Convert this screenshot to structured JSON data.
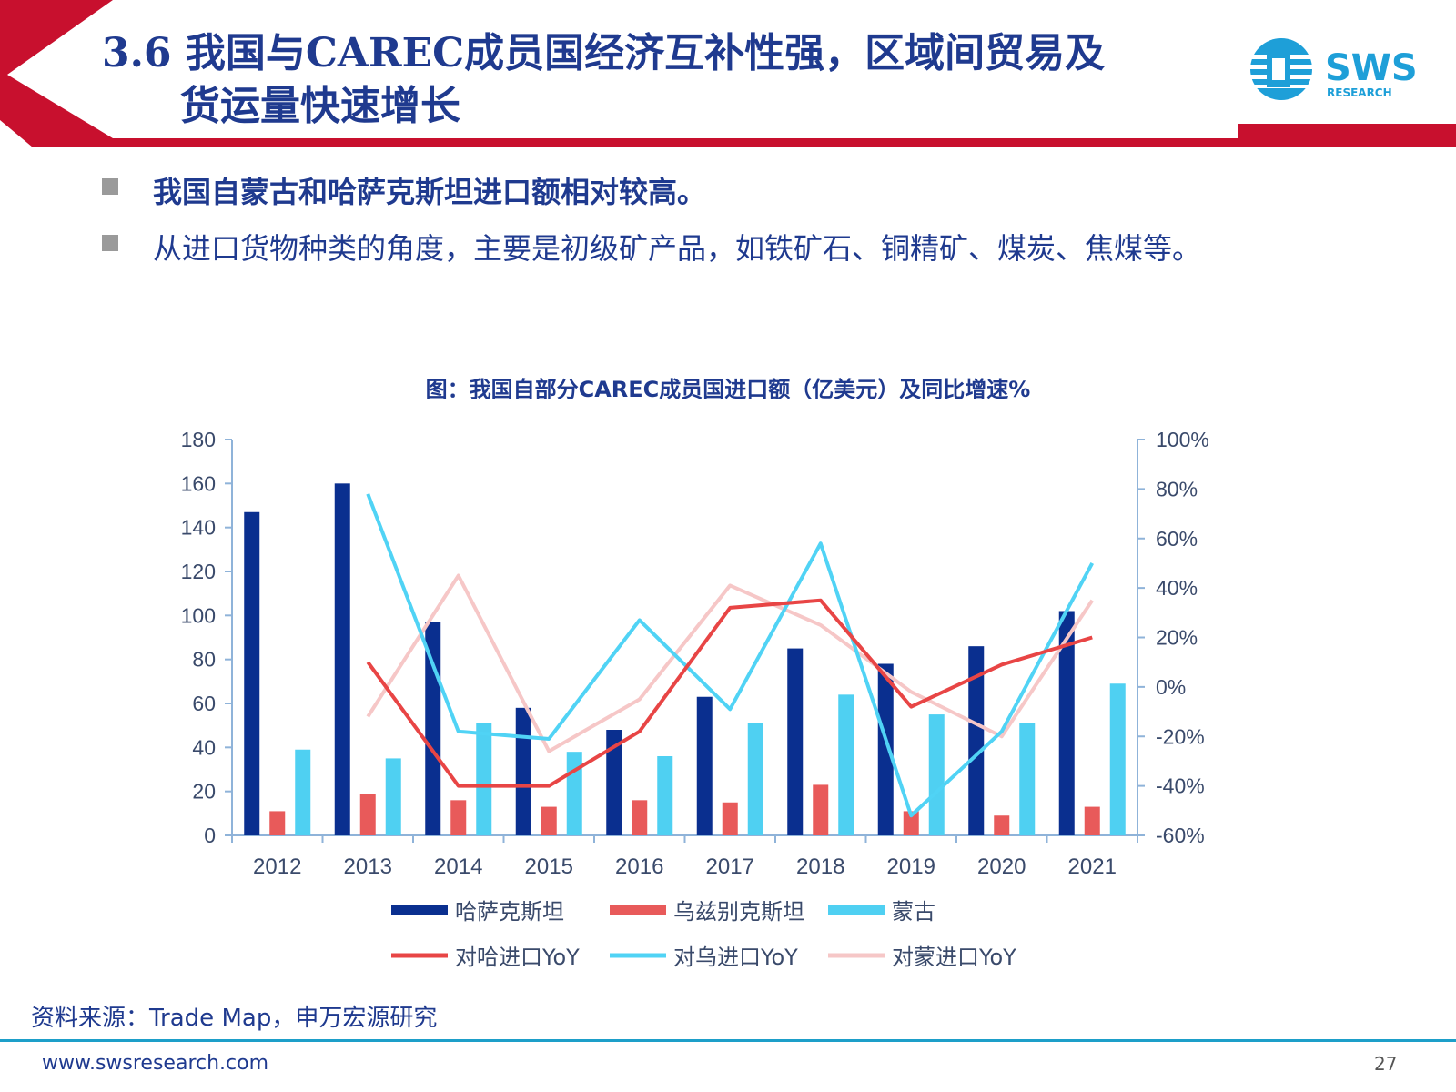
{
  "header": {
    "title_line1": "3.6 我国与CAREC成员国经济互补性强，区域间贸易及",
    "title_line2": "货运量快速增长",
    "accent_color": "#C8102E",
    "title_color": "#1F3A8F"
  },
  "logo": {
    "text": "SWS",
    "subtext": "RESEARCH",
    "icon": "sws-globe-logo-icon",
    "color": "#1E9FD8"
  },
  "bullets": [
    {
      "text": "我国自蒙古和哈萨克斯坦进口额相对较高。",
      "bold": true
    },
    {
      "text": "从进口货物种类的角度，主要是初级矿产品，如铁矿石、铜精矿、煤炭、焦煤等。",
      "bold": false
    }
  ],
  "chart_data": {
    "type": "bar",
    "title": "图：我国自部分CAREC成员国进口额（亿美元）及同比增速%",
    "categories": [
      "2012",
      "2013",
      "2014",
      "2015",
      "2016",
      "2017",
      "2018",
      "2019",
      "2020",
      "2021"
    ],
    "series": [
      {
        "name": "哈萨克斯坦",
        "type": "bar",
        "axis": "left",
        "color": "#0A2F8F",
        "values": [
          147,
          160,
          97,
          58,
          48,
          63,
          85,
          78,
          86,
          102
        ]
      },
      {
        "name": "乌兹别克斯坦",
        "type": "bar",
        "axis": "left",
        "color": "#E85A5A",
        "values": [
          11,
          19,
          16,
          13,
          16,
          15,
          23,
          11,
          9,
          13
        ]
      },
      {
        "name": "蒙古",
        "type": "bar",
        "axis": "left",
        "color": "#4FD0F2",
        "values": [
          39,
          35,
          51,
          38,
          36,
          51,
          64,
          55,
          51,
          69
        ]
      },
      {
        "name": "对哈进口YoY",
        "type": "line",
        "axis": "right",
        "color": "#E84545",
        "values": [
          null,
          10,
          -40,
          -40,
          -18,
          32,
          35,
          -8,
          9,
          20
        ]
      },
      {
        "name": "对乌进口YoY",
        "type": "line",
        "axis": "right",
        "color": "#50D3F5",
        "values": [
          null,
          78,
          -18,
          -21,
          27,
          -9,
          58,
          -52,
          -18,
          50
        ]
      },
      {
        "name": "对蒙进口YoY",
        "type": "line",
        "axis": "right",
        "color": "#F6C7C7",
        "values": [
          null,
          -12,
          45,
          -26,
          -5,
          41,
          25,
          -2,
          -20,
          35
        ]
      }
    ],
    "ylim_left": [
      0,
      180
    ],
    "yticks_left": [
      "180",
      "160",
      "140",
      "120",
      "100",
      "80",
      "60",
      "40",
      "20",
      "0"
    ],
    "ylim_right": [
      -60,
      100
    ],
    "yticks_right": [
      "100%",
      "80%",
      "60%",
      "40%",
      "20%",
      "0%",
      "-20%",
      "-40%",
      "-60%"
    ],
    "grid": false,
    "legend_position": "bottom"
  },
  "footer": {
    "source": "资料来源：Trade Map，申万宏源研究",
    "website": "www.swsresearch.com",
    "page_number": "27"
  }
}
